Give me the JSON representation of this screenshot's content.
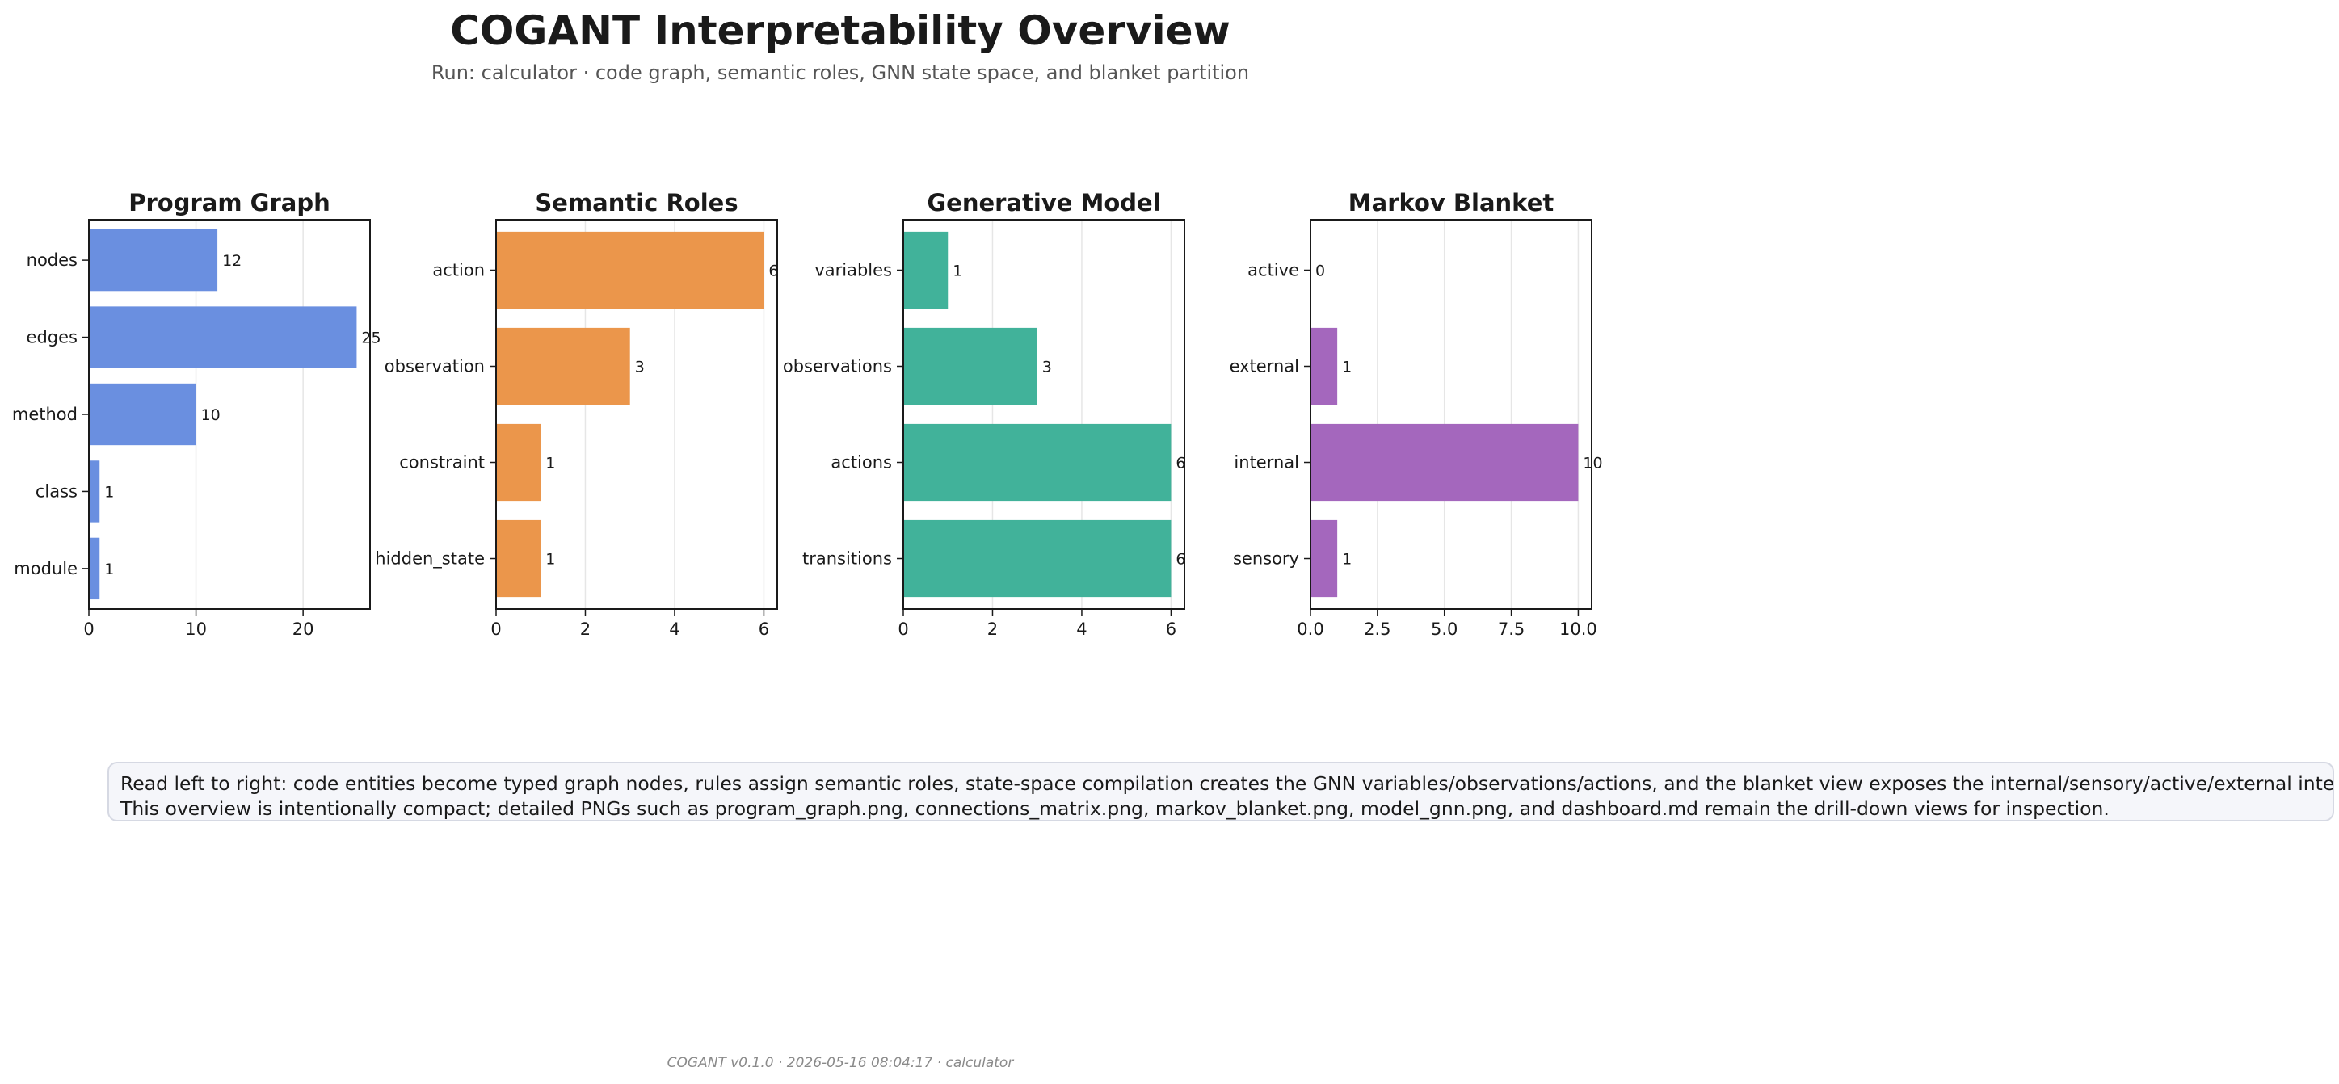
{
  "header": {
    "title": "COGANT Interpretability Overview",
    "subtitle": "Run: calculator · code graph, semantic roles, GNN state space, and blanket partition"
  },
  "note": {
    "line1": "Read left to right: code entities become typed graph nodes, rules assign semantic roles, state-space compilation creates the GNN variables/observations/actions, and the blanket view exposes the internal/sensory/active/external interface.",
    "line2": "This overview is intentionally compact; detailed PNGs such as program_graph.png, connections_matrix.png, markov_blanket.png, model_gnn.png, and dashboard.md remain the drill-down views for inspection."
  },
  "footer": {
    "text": "COGANT v0.1.0  ·  2026-05-16 08:04:17  ·  calculator"
  },
  "chart_data": [
    {
      "type": "bar",
      "orientation": "horizontal",
      "title": "Program Graph",
      "categories": [
        "nodes",
        "edges",
        "method",
        "class",
        "module"
      ],
      "values": [
        12,
        25,
        10,
        1,
        1
      ],
      "xlim": [
        0,
        26.25
      ],
      "xticks": [
        0,
        10,
        20
      ],
      "xtick_labels": [
        "0",
        "10",
        "20"
      ],
      "color": "#6a8fe0",
      "grid": "x"
    },
    {
      "type": "bar",
      "orientation": "horizontal",
      "title": "Semantic Roles",
      "categories": [
        "action",
        "observation",
        "constraint",
        "hidden_state"
      ],
      "values": [
        6,
        3,
        1,
        1
      ],
      "xlim": [
        0,
        6.3
      ],
      "xticks": [
        0,
        2,
        4,
        6
      ],
      "xtick_labels": [
        "0",
        "2",
        "4",
        "6"
      ],
      "color": "#eb964b",
      "grid": "x"
    },
    {
      "type": "bar",
      "orientation": "horizontal",
      "title": "Generative Model",
      "categories": [
        "variables",
        "observations",
        "actions",
        "transitions"
      ],
      "values": [
        1,
        3,
        6,
        6
      ],
      "xlim": [
        0,
        6.3
      ],
      "xticks": [
        0,
        2,
        4,
        6
      ],
      "xtick_labels": [
        "0",
        "2",
        "4",
        "6"
      ],
      "color": "#41b29a",
      "grid": "x"
    },
    {
      "type": "bar",
      "orientation": "horizontal",
      "title": "Markov Blanket",
      "categories": [
        "active",
        "external",
        "internal",
        "sensory"
      ],
      "values": [
        0,
        1,
        10,
        1
      ],
      "xlim": [
        0,
        10.5
      ],
      "xticks": [
        0,
        2.5,
        5,
        7.5,
        10
      ],
      "xtick_labels": [
        "0.0",
        "2.5",
        "5.0",
        "7.5",
        "10.0"
      ],
      "color": "#a467bd",
      "grid": "x"
    }
  ]
}
